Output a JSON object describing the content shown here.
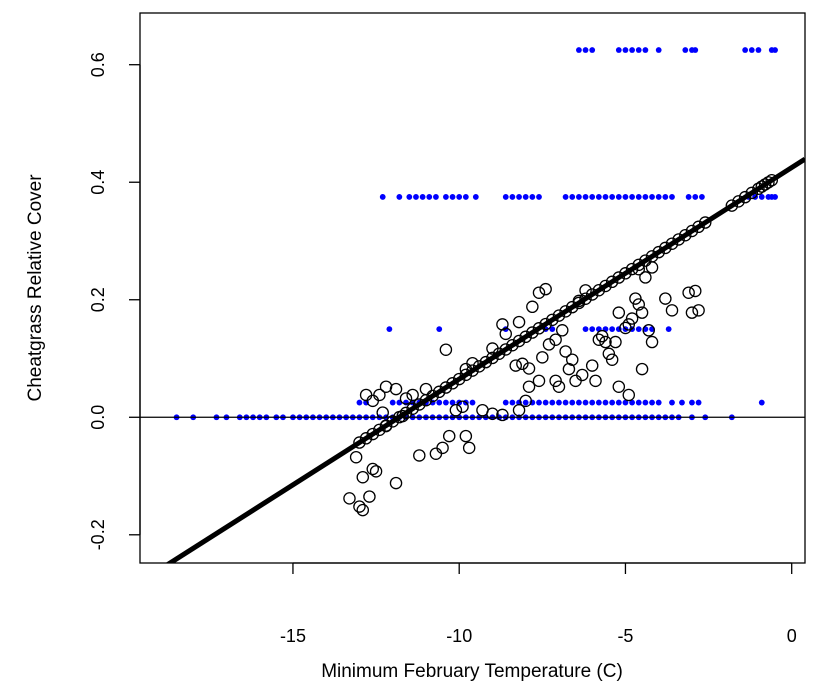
{
  "chart_data": {
    "type": "scatter",
    "xlabel": "Minimum February Temperature (C)",
    "ylabel": "Cheatgrass Relative Cover",
    "xlim": [
      -19.6,
      0.4
    ],
    "ylim": [
      -0.248,
      0.688
    ],
    "x_ticks": [
      -15,
      -10,
      -5,
      0
    ],
    "y_ticks": [
      -0.2,
      0.0,
      0.2,
      0.4,
      0.6
    ],
    "x_tick_labels": [
      "-15",
      "-10",
      "-5",
      "0"
    ],
    "y_tick_labels": [
      "-0.2",
      "0.0",
      "0.2",
      "0.4",
      "0.6"
    ],
    "grid": false,
    "legend": "none",
    "colors": {
      "observed": "#0000ff",
      "fitted": "#000000",
      "line": "#000000"
    },
    "reference_line_y": 0,
    "regression_line": {
      "intercept": 0.425,
      "slope": 0.036
    },
    "observed_series": [
      {
        "y": 0.625,
        "x": [
          -6.4,
          -6.2,
          -6.0,
          -5.2,
          -5.0,
          -4.8,
          -4.6,
          -4.4,
          -4.0,
          -3.2,
          -3.0,
          -2.9,
          -1.4,
          -1.2,
          -1.0,
          -0.6,
          -0.5
        ]
      },
      {
        "y": 0.375,
        "x": [
          -12.3,
          -11.8,
          -11.5,
          -11.3,
          -11.1,
          -10.9,
          -10.7,
          -10.4,
          -10.2,
          -10.0,
          -9.8,
          -9.5,
          -8.6,
          -8.4,
          -8.2,
          -8.0,
          -7.8,
          -7.6,
          -6.8,
          -6.6,
          -6.4,
          -6.2,
          -6.0,
          -5.8,
          -5.6,
          -5.4,
          -5.2,
          -5.0,
          -4.8,
          -4.6,
          -4.4,
          -4.2,
          -4.0,
          -3.8,
          -3.6,
          -3.1,
          -2.9,
          -2.7,
          -1.3,
          -1.1,
          -0.9,
          -0.7,
          -0.6,
          -0.5
        ]
      },
      {
        "y": 0.15,
        "x": [
          -12.1,
          -10.6,
          -8.6,
          -7.4,
          -7.2,
          -6.2,
          -6.0,
          -5.8,
          -5.6,
          -5.4,
          -5.2,
          -5.0,
          -4.8,
          -4.6,
          -4.4,
          -4.2,
          -3.7
        ]
      },
      {
        "y": 0.025,
        "x": [
          -13.0,
          -12.8,
          -12.0,
          -11.8,
          -11.6,
          -11.4,
          -11.2,
          -11.0,
          -10.8,
          -10.6,
          -10.4,
          -10.2,
          -10.0,
          -9.8,
          -9.6,
          -8.6,
          -8.4,
          -8.2,
          -8.0,
          -7.8,
          -7.6,
          -7.4,
          -7.2,
          -7.0,
          -6.8,
          -6.6,
          -6.4,
          -6.2,
          -6.0,
          -5.8,
          -5.6,
          -5.4,
          -5.2,
          -5.0,
          -4.8,
          -4.6,
          -4.4,
          -4.2,
          -4.0,
          -3.6,
          -3.3,
          -3.0,
          -2.8,
          -0.9
        ]
      },
      {
        "y": 0.0,
        "x": [
          -18.5,
          -18.0,
          -17.3,
          -17.0,
          -16.6,
          -16.4,
          -16.2,
          -16.0,
          -15.8,
          -15.5,
          -15.3,
          -15.0,
          -14.8,
          -14.6,
          -14.4,
          -14.2,
          -14.0,
          -13.8,
          -13.6,
          -13.4,
          -13.2,
          -13.0,
          -12.8,
          -12.6,
          -12.4,
          -12.2,
          -12.0,
          -11.8,
          -11.6,
          -11.4,
          -11.2,
          -11.0,
          -10.8,
          -10.6,
          -10.4,
          -10.2,
          -10.0,
          -9.8,
          -9.6,
          -9.4,
          -9.2,
          -9.0,
          -8.8,
          -8.6,
          -8.4,
          -8.2,
          -8.0,
          -7.8,
          -7.6,
          -7.4,
          -7.2,
          -7.0,
          -6.8,
          -6.6,
          -6.4,
          -6.2,
          -6.0,
          -5.8,
          -5.6,
          -5.4,
          -5.2,
          -5.0,
          -4.8,
          -4.6,
          -4.4,
          -4.2,
          -4.0,
          -3.8,
          -3.6,
          -3.4,
          -3.0,
          -2.6,
          -1.8
        ]
      }
    ],
    "fitted_on_line": [
      -13.0,
      -12.8,
      -12.6,
      -12.4,
      -12.2,
      -12.0,
      -11.8,
      -11.6,
      -11.4,
      -11.2,
      -11.0,
      -10.8,
      -10.6,
      -10.4,
      -10.2,
      -10.0,
      -9.8,
      -9.6,
      -9.4,
      -9.2,
      -9.0,
      -8.8,
      -8.6,
      -8.4,
      -8.2,
      -8.0,
      -7.8,
      -7.6,
      -7.4,
      -7.2,
      -7.0,
      -6.8,
      -6.6,
      -6.4,
      -6.2,
      -6.0,
      -5.8,
      -5.6,
      -5.4,
      -5.2,
      -5.0,
      -4.8,
      -4.6,
      -4.4,
      -4.2,
      -4.0,
      -3.8,
      -3.6,
      -3.4,
      -3.2,
      -3.0,
      -2.8,
      -2.6,
      -1.8,
      -1.6,
      -1.4,
      -1.2,
      -1.0,
      -0.9,
      -0.8,
      -0.7,
      -0.6
    ],
    "fitted_points": [
      [
        -13.3,
        -0.138
      ],
      [
        -13.0,
        -0.152
      ],
      [
        -12.9,
        -0.158
      ],
      [
        -12.7,
        -0.135
      ],
      [
        -13.1,
        -0.068
      ],
      [
        -12.9,
        -0.102
      ],
      [
        -12.5,
        -0.092
      ],
      [
        -12.6,
        -0.088
      ],
      [
        -12.2,
        -0.015
      ],
      [
        -12.3,
        0.008
      ],
      [
        -11.9,
        -0.112
      ],
      [
        -11.7,
        0.002
      ],
      [
        -11.2,
        -0.065
      ],
      [
        -10.7,
        -0.062
      ],
      [
        -10.5,
        -0.052
      ],
      [
        -10.3,
        -0.032
      ],
      [
        -9.7,
        -0.052
      ],
      [
        -9.8,
        -0.032
      ],
      [
        -10.1,
        0.012
      ],
      [
        -9.9,
        0.018
      ],
      [
        -9.3,
        0.012
      ],
      [
        -9.0,
        0.006
      ],
      [
        -8.7,
        0.004
      ],
      [
        -8.2,
        0.012
      ],
      [
        -8.0,
        0.028
      ],
      [
        -7.9,
        0.052
      ],
      [
        -7.6,
        0.062
      ],
      [
        -7.9,
        0.083
      ],
      [
        -8.1,
        0.091
      ],
      [
        -8.3,
        0.088
      ],
      [
        -7.5,
        0.102
      ],
      [
        -7.3,
        0.124
      ],
      [
        -7.1,
        0.132
      ],
      [
        -7.6,
        0.212
      ],
      [
        -7.4,
        0.218
      ],
      [
        -6.9,
        0.148
      ],
      [
        -6.8,
        0.112
      ],
      [
        -6.6,
        0.098
      ],
      [
        -7.1,
        0.062
      ],
      [
        -7.0,
        0.052
      ],
      [
        -6.7,
        0.082
      ],
      [
        -6.5,
        0.062
      ],
      [
        -6.3,
        0.072
      ],
      [
        -6.0,
        0.088
      ],
      [
        -5.8,
        0.132
      ],
      [
        -5.7,
        0.138
      ],
      [
        -5.6,
        0.128
      ],
      [
        -5.5,
        0.108
      ],
      [
        -5.4,
        0.098
      ],
      [
        -5.3,
        0.128
      ],
      [
        -5.2,
        0.178
      ],
      [
        -5.0,
        0.152
      ],
      [
        -4.9,
        0.158
      ],
      [
        -4.8,
        0.168
      ],
      [
        -4.7,
        0.202
      ],
      [
        -4.6,
        0.192
      ],
      [
        -4.5,
        0.178
      ],
      [
        -4.3,
        0.148
      ],
      [
        -4.2,
        0.128
      ],
      [
        -4.6,
        0.252
      ],
      [
        -4.4,
        0.238
      ],
      [
        -4.2,
        0.255
      ],
      [
        -3.6,
        0.182
      ],
      [
        -3.8,
        0.202
      ],
      [
        -3.1,
        0.212
      ],
      [
        -2.9,
        0.215
      ],
      [
        -3.0,
        0.178
      ],
      [
        -2.8,
        0.182
      ],
      [
        -6.4,
        0.198
      ],
      [
        -6.2,
        0.216
      ],
      [
        -8.7,
        0.158
      ],
      [
        -8.6,
        0.142
      ],
      [
        -8.2,
        0.162
      ],
      [
        -7.8,
        0.188
      ],
      [
        -9.0,
        0.117
      ],
      [
        -9.6,
        0.092
      ],
      [
        -9.8,
        0.082
      ],
      [
        -10.4,
        0.115
      ],
      [
        -11.0,
        0.048
      ],
      [
        -11.4,
        0.038
      ],
      [
        -11.6,
        0.032
      ],
      [
        -11.9,
        0.048
      ],
      [
        -12.2,
        0.052
      ],
      [
        -12.4,
        0.038
      ],
      [
        -12.6,
        0.028
      ],
      [
        -12.8,
        0.038
      ],
      [
        -5.9,
        0.062
      ],
      [
        -5.2,
        0.052
      ],
      [
        -4.9,
        0.038
      ],
      [
        -4.5,
        0.082
      ]
    ]
  }
}
